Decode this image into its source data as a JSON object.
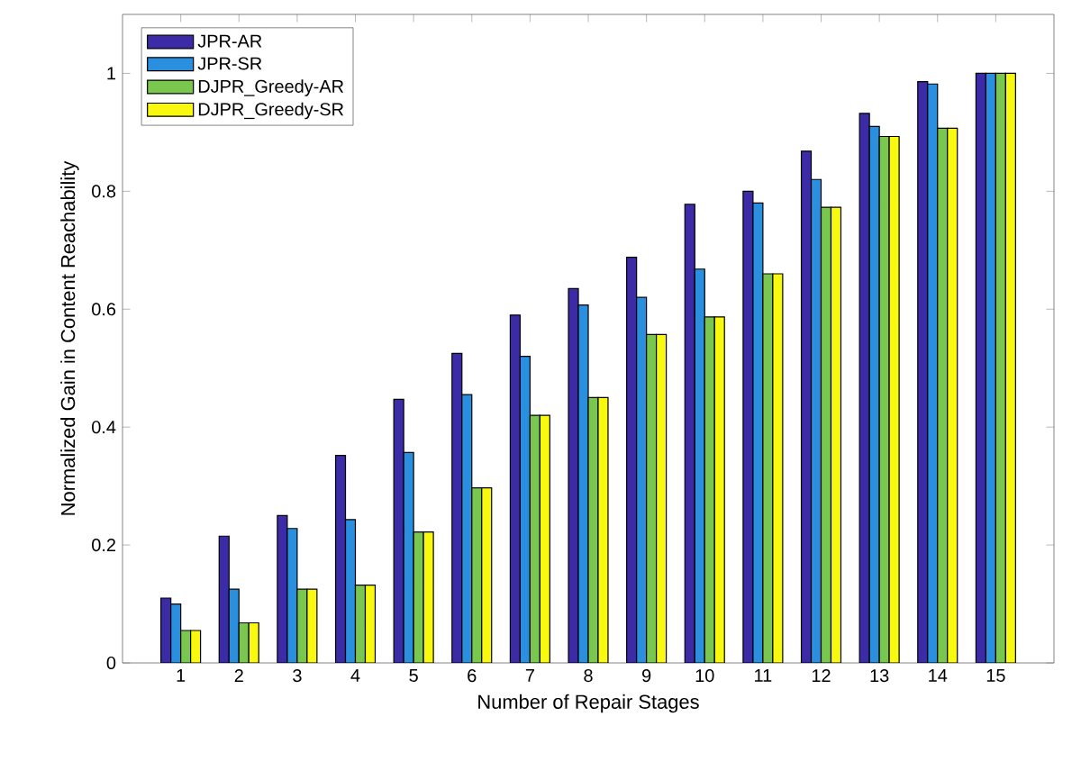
{
  "chart_data": {
    "type": "bar",
    "xlabel": "Number of Repair Stages",
    "ylabel": "Normalized Gain in Content Reachability",
    "categories": [
      "1",
      "2",
      "3",
      "4",
      "5",
      "6",
      "7",
      "8",
      "9",
      "10",
      "11",
      "12",
      "13",
      "14",
      "15"
    ],
    "series": [
      {
        "name": "JPR-AR",
        "color": "#3b2ba6",
        "values": [
          0.11,
          0.215,
          0.25,
          0.352,
          0.447,
          0.525,
          0.59,
          0.635,
          0.688,
          0.778,
          0.8,
          0.868,
          0.932,
          0.986,
          1
        ]
      },
      {
        "name": "JPR-SR",
        "color": "#2a8fdf",
        "values": [
          0.1,
          0.125,
          0.228,
          0.243,
          0.357,
          0.455,
          0.52,
          0.607,
          0.62,
          0.668,
          0.78,
          0.82,
          0.91,
          0.982,
          1
        ]
      },
      {
        "name": "DJPR_Greedy-AR",
        "color": "#7ac74f",
        "values": [
          0.055,
          0.068,
          0.125,
          0.132,
          0.222,
          0.297,
          0.42,
          0.45,
          0.557,
          0.587,
          0.66,
          0.773,
          0.893,
          0.907,
          1
        ]
      },
      {
        "name": "DJPR_Greedy-SR",
        "color": "#f9f90f",
        "values": [
          0.055,
          0.068,
          0.125,
          0.132,
          0.222,
          0.297,
          0.42,
          0.45,
          0.557,
          0.587,
          0.66,
          0.773,
          0.893,
          0.907,
          1
        ]
      }
    ],
    "ylim": [
      0,
      1.1
    ],
    "yticks": [
      0,
      0.2,
      0.4,
      0.6,
      0.8,
      1
    ],
    "grid": false,
    "legend": "top left"
  }
}
